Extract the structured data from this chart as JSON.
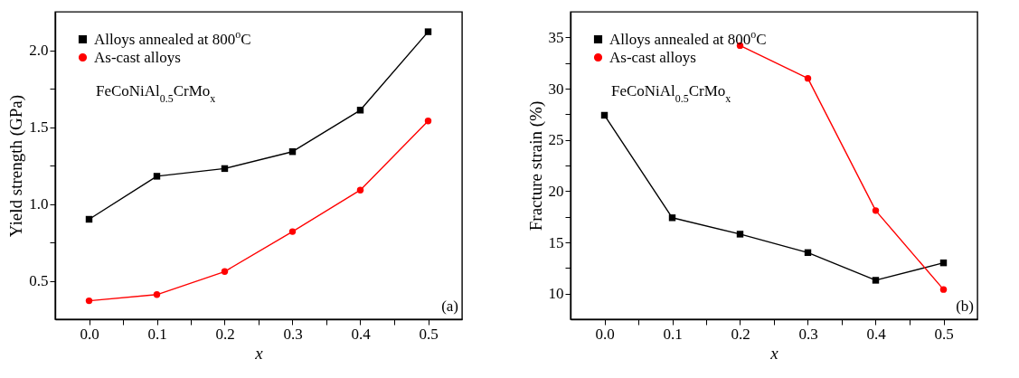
{
  "chart_data": [
    {
      "type": "line",
      "xlabel": "x",
      "ylabel": "Yield strength (GPa)",
      "x": [
        0,
        0.1,
        0.2,
        0.3,
        0.4,
        0.5
      ],
      "series": [
        {
          "name": "Alloys annealed at 800$^{o}$C",
          "color": "#000000",
          "marker": "square",
          "values": [
            0.9,
            1.18,
            1.23,
            1.34,
            1.61,
            2.12
          ]
        },
        {
          "name": "As-cast alloys",
          "color": "#ff0000",
          "marker": "circle",
          "values": [
            0.37,
            0.41,
            0.56,
            0.82,
            1.09,
            1.54
          ]
        }
      ],
      "xlim": [
        -0.05,
        0.55
      ],
      "xticks": [
        {
          "value": 0,
          "label": "0.0"
        },
        {
          "value": 0.05,
          "label": null
        },
        0.1,
        {
          "value": 0.15,
          "label": null
        },
        0.2,
        {
          "value": 0.25,
          "label": null
        },
        0.3,
        {
          "value": 0.35,
          "label": null
        },
        0.4,
        {
          "value": 0.45,
          "label": null
        },
        0.5
      ],
      "ylim": [
        0.25,
        2.25
      ],
      "yticks": [
        0.5,
        {
          "value": 0.75,
          "label": null
        },
        {
          "value": 1,
          "label": "1.0"
        },
        {
          "value": 1.25,
          "label": null
        },
        1.5,
        {
          "value": 1.75,
          "label": null
        },
        {
          "value": 2,
          "label": "2.0"
        }
      ],
      "legend": "top left",
      "grid": false,
      "annotations": [
        "FeCoNiAl$_{0.5}$CrMo$_{x}$",
        "(a)"
      ]
    },
    {
      "type": "line",
      "xlabel": "x",
      "ylabel": "Fracture strain (%)",
      "x": [
        0,
        0.1,
        0.2,
        0.3,
        0.4,
        0.5
      ],
      "series": [
        {
          "name": "Alloys annealed at 800$^{o}$C",
          "color": "#000000",
          "marker": "square",
          "values": [
            27.4,
            17.4,
            15.8,
            14.0,
            11.3,
            13.0
          ]
        },
        {
          "name": "As-cast alloys",
          "color": "#ff0000",
          "marker": "circle",
          "values": [
            null,
            null,
            34.2,
            31.0,
            18.1,
            10.4
          ]
        }
      ],
      "xlim": [
        -0.05,
        0.55
      ],
      "xticks": [
        {
          "value": 0,
          "label": "0.0"
        },
        {
          "value": 0.05,
          "label": null
        },
        0.1,
        {
          "value": 0.15,
          "label": null
        },
        0.2,
        {
          "value": 0.25,
          "label": null
        },
        0.3,
        {
          "value": 0.35,
          "label": null
        },
        0.4,
        {
          "value": 0.45,
          "label": null
        },
        0.5
      ],
      "ylim": [
        7.5,
        37.5
      ],
      "yticks": [
        10,
        {
          "value": 12.5,
          "label": null
        },
        15,
        {
          "value": 17.5,
          "label": null
        },
        20,
        {
          "value": 22.5,
          "label": null
        },
        25,
        {
          "value": 27.5,
          "label": null
        },
        30,
        {
          "value": 32.5,
          "label": null
        },
        35
      ],
      "legend": "top left",
      "grid": false,
      "annotations": [
        "FeCoNiAl$_{0.5}$CrMo$_{x}$",
        "(b)"
      ]
    }
  ]
}
